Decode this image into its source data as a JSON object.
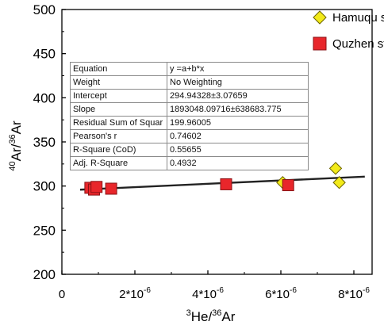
{
  "chart_data": {
    "type": "scatter",
    "title": "",
    "xlabel": "3He/36Ar",
    "ylabel": "40Ar/36Ar",
    "xlim": [
      0,
      8.5e-06
    ],
    "ylim": [
      200,
      500
    ],
    "x_ticks": [
      {
        "value": 0,
        "label": "0"
      },
      {
        "value": 2e-06,
        "label": "2*10-6"
      },
      {
        "value": 4e-06,
        "label": "4*10-6"
      },
      {
        "value": 6e-06,
        "label": "6*10-6"
      },
      {
        "value": 8e-06,
        "label": "8*10-6"
      }
    ],
    "y_ticks": [
      200,
      250,
      300,
      350,
      400,
      450,
      500
    ],
    "legend_position": "top-right",
    "series": [
      {
        "name": "Hamuqu stibnite",
        "marker": "diamond",
        "color": "#f2ea19",
        "points": [
          {
            "x": 6.05e-06,
            "y": 304
          },
          {
            "x": 7.5e-06,
            "y": 320
          },
          {
            "x": 7.6e-06,
            "y": 304
          }
        ]
      },
      {
        "name": "Quzhen stibnite",
        "marker": "square",
        "color": "#e8262b",
        "points": [
          {
            "x": 7.8e-07,
            "y": 298
          },
          {
            "x": 8.8e-07,
            "y": 296
          },
          {
            "x": 9.5e-07,
            "y": 299
          },
          {
            "x": 1.35e-06,
            "y": 297
          },
          {
            "x": 4.5e-06,
            "y": 302
          },
          {
            "x": 6.2e-06,
            "y": 301
          }
        ]
      }
    ],
    "fit_line": {
      "label": "y =a+b*x",
      "intercept": 294.94328,
      "slope": 1893048.09716,
      "x_range": [
        5e-07,
        8.3e-06
      ],
      "color": "#222222"
    },
    "fit_table": [
      [
        "Equation",
        "y =a+b*x"
      ],
      [
        "Weight",
        "No Weighting"
      ],
      [
        "Intercept",
        "294.94328±3.07659"
      ],
      [
        "Slope",
        "1893048.09716±638683.775"
      ],
      [
        "Residual Sum of Squar",
        "199.96005"
      ],
      [
        "Pearson's r",
        "0.74602"
      ],
      [
        "R-Square (CoD)",
        "0.55655"
      ],
      [
        "Adj. R-Square",
        "0.4932"
      ]
    ]
  }
}
